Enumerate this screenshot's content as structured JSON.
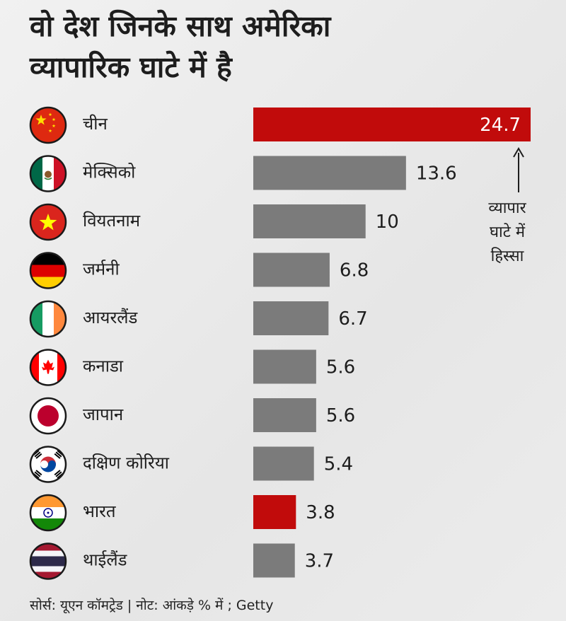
{
  "title": {
    "line1": "वो देश जिनके साथ अमेरिका",
    "line2": "व्यापारिक घाटे में है"
  },
  "colors": {
    "highlight": "#c10b0b",
    "bar": "#7b7b7b",
    "value_on_bar": "#ffffff",
    "value_text": "#1d1d1d"
  },
  "chart_data": {
    "type": "bar",
    "orientation": "horizontal",
    "unit": "%",
    "categories": [
      "चीन",
      "मेक्सिको",
      "वियतनाम",
      "जर्मनी",
      "आयरलैंड",
      "कनाडा",
      "जापान",
      "दक्षिण कोरिया",
      "भारत",
      "थाईलैंड"
    ],
    "flags": [
      "china-flag-icon",
      "mexico-flag-icon",
      "vietnam-flag-icon",
      "germany-flag-icon",
      "ireland-flag-icon",
      "canada-flag-icon",
      "japan-flag-icon",
      "south-korea-flag-icon",
      "india-flag-icon",
      "thailand-flag-icon"
    ],
    "values": [
      24.7,
      13.6,
      10,
      6.8,
      6.7,
      5.6,
      5.6,
      5.4,
      3.8,
      3.7
    ],
    "value_labels": [
      "24.7",
      "13.6",
      "10",
      "6.8",
      "6.7",
      "5.6",
      "5.6",
      "5.4",
      "3.8",
      "3.7"
    ],
    "highlighted": [
      true,
      false,
      false,
      false,
      false,
      false,
      false,
      false,
      true,
      false
    ],
    "xlim": [
      0,
      24.7
    ],
    "annotation": [
      "व्यापार",
      "घाटे में",
      "हिस्सा"
    ]
  },
  "source": "सोर्स: यूएन कॉमट्रेड | नोट: आंकड़े % में ; Getty"
}
